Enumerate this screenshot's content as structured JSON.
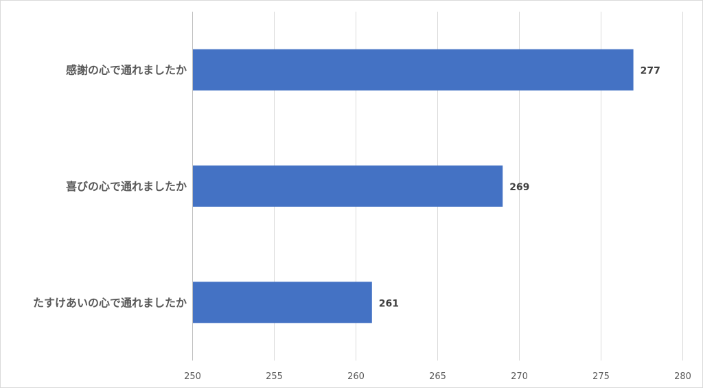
{
  "chart_data": {
    "type": "bar",
    "orientation": "horizontal",
    "categories": [
      "感謝の心で通れましたか",
      "喜びの心で通れましたか",
      "たすけあいの心で通れましたか"
    ],
    "values": [
      277,
      269,
      261
    ],
    "data_labels": [
      "277",
      "269",
      "261"
    ],
    "xlim": [
      250,
      280
    ],
    "x_ticks": [
      250,
      255,
      260,
      265,
      270,
      275,
      280
    ],
    "x_tick_labels": [
      "250",
      "255",
      "260",
      "265",
      "270",
      "275",
      "280"
    ],
    "grid": true,
    "legend": "none",
    "bar_color": "#4472C4"
  }
}
